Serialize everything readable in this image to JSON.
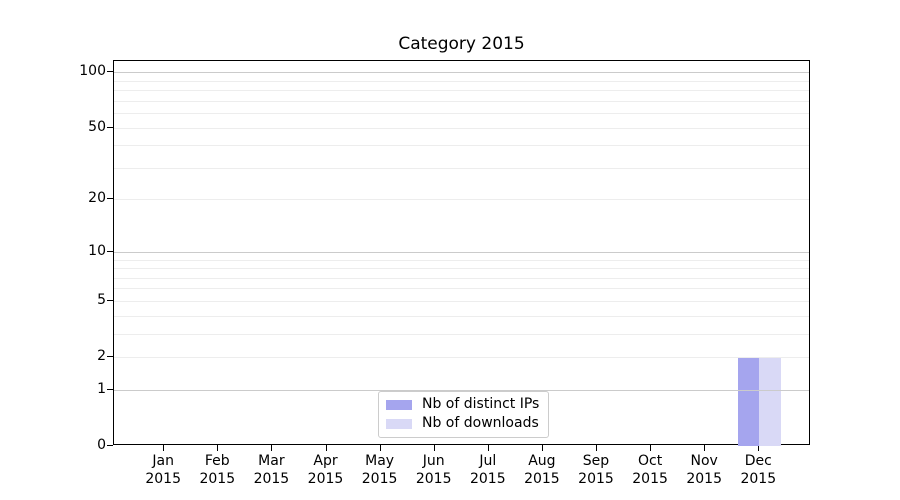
{
  "figure": {
    "title": "Category 2015"
  },
  "legend": {
    "items": [
      {
        "label": "Nb of distinct IPs",
        "color": "#a5a5ee"
      },
      {
        "label": "Nb of downloads",
        "color": "#d9d9f6"
      }
    ],
    "position": "lower center"
  },
  "chart_data": {
    "type": "bar",
    "title": "Category 2015",
    "categories": [
      "Jan 2015",
      "Feb 2015",
      "Mar 2015",
      "Apr 2015",
      "May 2015",
      "Jun 2015",
      "Jul 2015",
      "Aug 2015",
      "Sep 2015",
      "Oct 2015",
      "Nov 2015",
      "Dec 2015"
    ],
    "series": [
      {
        "name": "Nb of distinct IPs",
        "color": "#a5a5ee",
        "values": [
          0,
          0,
          0,
          0,
          0,
          0,
          0,
          0,
          0,
          0,
          0,
          2
        ]
      },
      {
        "name": "Nb of downloads",
        "color": "#d9d9f6",
        "values": [
          0,
          0,
          0,
          0,
          0,
          0,
          0,
          0,
          0,
          0,
          0,
          2
        ]
      }
    ],
    "xlabel": "",
    "ylabel": "",
    "yscale": "log1p",
    "ylim": [
      0,
      115
    ],
    "yticks": [
      0,
      1,
      2,
      5,
      10,
      20,
      50,
      100
    ],
    "grid_major_values": [
      1,
      10,
      100
    ],
    "grid_minor_values": [
      2,
      3,
      4,
      5,
      6,
      7,
      8,
      9,
      20,
      30,
      40,
      50,
      60,
      70,
      80,
      90
    ],
    "grid": "horizontal",
    "legend_position": "lower center",
    "colors": {
      "grid_major": "#cbcbcb",
      "grid_minor": "#ededed",
      "spine": "#000000"
    }
  }
}
